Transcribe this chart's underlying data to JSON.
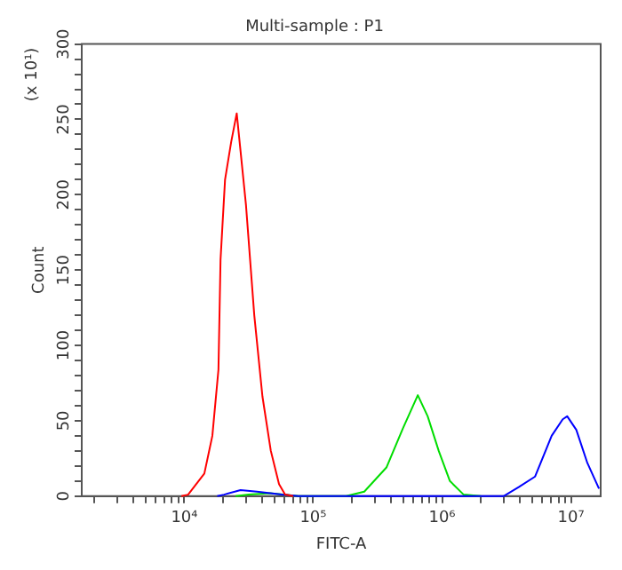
{
  "chart_data": {
    "type": "line",
    "title": "Multi-sample : P1",
    "xlabel": "FITC-A",
    "ylabel": "Count",
    "annotations": [
      "(x 10¹)"
    ],
    "log": "x",
    "grid": false,
    "legend": false,
    "marker": "none",
    "line_style": "solid",
    "xlim": [
      1600,
      17000000
    ],
    "ylim": [
      0,
      300
    ],
    "xticks": [
      {
        "value": 2000,
        "label": null
      },
      {
        "value": 3000,
        "label": null
      },
      {
        "value": 4000,
        "label": null
      },
      {
        "value": 5000,
        "label": null
      },
      {
        "value": 6000,
        "label": null
      },
      {
        "value": 7000,
        "label": null
      },
      {
        "value": 8000,
        "label": null
      },
      {
        "value": 9000,
        "label": null
      },
      {
        "value": 10000,
        "label": "10⁴"
      },
      {
        "value": 20000,
        "label": null
      },
      {
        "value": 30000,
        "label": null
      },
      {
        "value": 40000,
        "label": null
      },
      {
        "value": 50000,
        "label": null
      },
      {
        "value": 60000,
        "label": null
      },
      {
        "value": 70000,
        "label": null
      },
      {
        "value": 80000,
        "label": null
      },
      {
        "value": 90000,
        "label": null
      },
      {
        "value": 100000,
        "label": "10⁵"
      },
      {
        "value": 200000,
        "label": null
      },
      {
        "value": 300000,
        "label": null
      },
      {
        "value": 400000,
        "label": null
      },
      {
        "value": 500000,
        "label": null
      },
      {
        "value": 600000,
        "label": null
      },
      {
        "value": 700000,
        "label": null
      },
      {
        "value": 800000,
        "label": null
      },
      {
        "value": 900000,
        "label": null
      },
      {
        "value": 1000000,
        "label": "10⁶"
      },
      {
        "value": 2000000,
        "label": null
      },
      {
        "value": 3000000,
        "label": null
      },
      {
        "value": 4000000,
        "label": null
      },
      {
        "value": 5000000,
        "label": null
      },
      {
        "value": 6000000,
        "label": null
      },
      {
        "value": 7000000,
        "label": null
      },
      {
        "value": 8000000,
        "label": null
      },
      {
        "value": 9000000,
        "label": null
      },
      {
        "value": 10000000,
        "label": "10⁷"
      }
    ],
    "yticks": [
      0,
      {
        "value": 10,
        "label": null
      },
      {
        "value": 20,
        "label": null
      },
      {
        "value": 30,
        "label": null
      },
      {
        "value": 40,
        "label": null
      },
      50,
      {
        "value": 60,
        "label": null
      },
      {
        "value": 70,
        "label": null
      },
      {
        "value": 80,
        "label": null
      },
      {
        "value": 90,
        "label": null
      },
      100,
      {
        "value": 110,
        "label": null
      },
      {
        "value": 120,
        "label": null
      },
      {
        "value": 130,
        "label": null
      },
      {
        "value": 140,
        "label": null
      },
      150,
      {
        "value": 160,
        "label": null
      },
      {
        "value": 170,
        "label": null
      },
      {
        "value": 180,
        "label": null
      },
      {
        "value": 190,
        "label": null
      },
      200,
      {
        "value": 210,
        "label": null
      },
      {
        "value": 220,
        "label": null
      },
      {
        "value": 230,
        "label": null
      },
      {
        "value": 240,
        "label": null
      },
      250,
      {
        "value": 260,
        "label": null
      },
      {
        "value": 270,
        "label": null
      },
      {
        "value": 280,
        "label": null
      },
      {
        "value": 290,
        "label": null
      },
      300
    ],
    "series": [
      {
        "color": "#ff0000",
        "x": [
          9500,
          10700,
          14300,
          16500,
          18400,
          19100,
          20700,
          23100,
          25500,
          27300,
          30100,
          34900,
          40400,
          46900,
          54300,
          60500,
          70000
        ],
        "values": [
          0,
          1,
          15,
          40,
          84,
          157,
          210,
          235,
          254,
          229,
          193,
          120,
          66,
          30,
          8,
          1,
          0
        ]
      },
      {
        "color": "#0000ff",
        "x": [
          18000,
          20300,
          27300,
          36600,
          57000,
          76700,
          3000000,
          3930000,
          5270000,
          7080000,
          8630000,
          9350000,
          11000000,
          13400000,
          16500000
        ],
        "values": [
          0,
          1,
          4,
          3,
          1,
          0,
          0,
          6,
          13,
          40,
          51,
          53,
          44,
          22,
          5
        ]
      },
      {
        "color": "#00dd00",
        "x": [
          25000,
          31600,
          46400,
          76700,
          180000,
          249000,
          370000,
          497000,
          648000,
          773000,
          942000,
          1150000,
          1470000,
          2000000
        ],
        "values": [
          0,
          1,
          2,
          0,
          0,
          3,
          19,
          45,
          67,
          53,
          30,
          10,
          1,
          0
        ]
      }
    ]
  }
}
